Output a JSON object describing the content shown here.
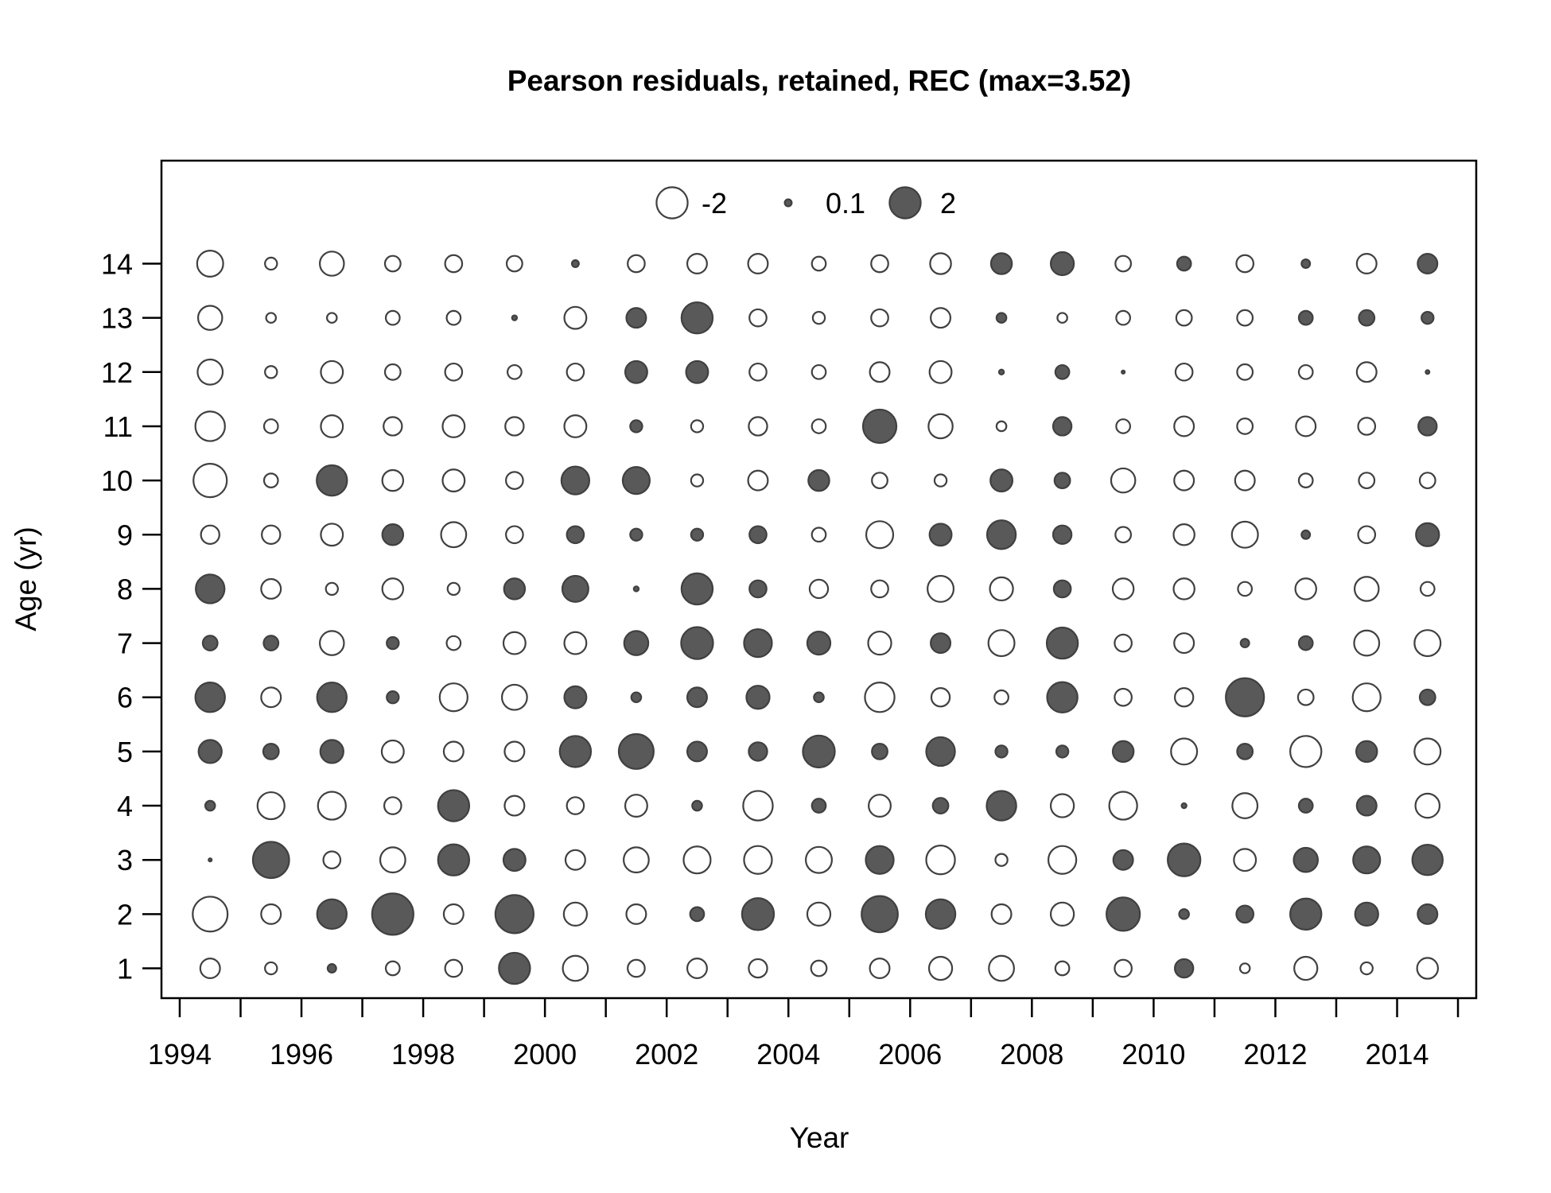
{
  "chart_data": {
    "type": "bubble",
    "title": "Pearson residuals, retained, REC (max=3.52)",
    "xlabel": "Year",
    "ylabel": "Age (yr)",
    "xlim": [
      1993.7,
      2015.3
    ],
    "ylim": [
      0.45,
      15.9
    ],
    "x_ticks": [
      "1994",
      "1996",
      "1998",
      "2000",
      "2002",
      "2004",
      "2006",
      "2008",
      "2010",
      "2012",
      "2014"
    ],
    "y_ticks": [
      "1",
      "2",
      "3",
      "4",
      "5",
      "6",
      "7",
      "8",
      "9",
      "10",
      "11",
      "12",
      "13",
      "14"
    ],
    "max_residual": 3.52,
    "colors": {
      "negative_fill": "#ffffff",
      "positive_fill": "#595959",
      "stroke": "#404040"
    },
    "legend": {
      "placement": "top-center",
      "entries": [
        {
          "label": "-2",
          "value": -2
        },
        {
          "label": "0.1",
          "value": 0.1
        },
        {
          "label": "2",
          "value": 2
        }
      ]
    },
    "years": [
      1994.5,
      1995.5,
      1996.5,
      1997.5,
      1998.5,
      1999.5,
      2000.5,
      2001.5,
      2002.5,
      2003.5,
      2004.5,
      2005.5,
      2006.5,
      2007.5,
      2008.5,
      2009.5,
      2010.5,
      2011.5,
      2012.5,
      2013.5,
      2014.5
    ],
    "ages": [
      1,
      2,
      3,
      4,
      5,
      6,
      7,
      8,
      9,
      10,
      11,
      12,
      13,
      14
    ],
    "residuals": [
      [
        -0.8,
        -2.5,
        0.02,
        0.2,
        1.1,
        1.8,
        0.45,
        1.7,
        -0.7,
        -2.3,
        -1.8,
        -1.3,
        -1.2,
        -1.4
      ],
      [
        -0.3,
        -0.8,
        2.7,
        -1.5,
        0.5,
        -0.8,
        0.45,
        -0.8,
        -0.7,
        -0.4,
        -0.4,
        -0.3,
        -0.2,
        -0.3
      ],
      [
        0.15,
        1.8,
        -0.6,
        -1.6,
        1.1,
        1.8,
        -1.2,
        -0.3,
        -1.0,
        1.9,
        -1.0,
        -1.0,
        -0.2,
        -1.2
      ],
      [
        -0.4,
        3.52,
        -1.3,
        -0.6,
        -1.0,
        0.3,
        0.3,
        -0.9,
        0.9,
        -0.9,
        -0.7,
        -0.5,
        -0.4,
        -0.5
      ],
      [
        -0.6,
        -0.8,
        2.0,
        2.0,
        -0.8,
        -1.6,
        -0.4,
        -0.3,
        -1.3,
        -1.0,
        -1.0,
        -0.6,
        -0.4,
        -0.6
      ],
      [
        2.0,
        3.0,
        1.0,
        -0.8,
        -0.8,
        -1.3,
        -1.0,
        0.9,
        -0.6,
        -0.6,
        -0.7,
        -0.4,
        0.05,
        -0.5
      ],
      [
        -1.3,
        -1.1,
        -0.8,
        -0.6,
        2.0,
        1.0,
        -1.0,
        1.4,
        0.6,
        1.6,
        -1.0,
        -0.6,
        -1.0,
        0.1
      ],
      [
        -0.6,
        -0.8,
        -1.3,
        -1.0,
        2.5,
        0.2,
        1.2,
        0.05,
        0.3,
        1.5,
        0.3,
        1.0,
        0.8,
        -0.6
      ],
      [
        -0.8,
        0.4,
        -1.5,
        0.2,
        0.8,
        0.8,
        2.1,
        2.0,
        0.3,
        -0.3,
        -0.3,
        1.0,
        2.0,
        -0.8
      ],
      [
        -0.7,
        2.1,
        -1.6,
        -1.8,
        0.7,
        1.1,
        1.6,
        0.6,
        0.6,
        -0.8,
        -0.7,
        -0.6,
        -0.6,
        -0.8
      ],
      [
        -0.5,
        -1.1,
        -1.4,
        0.4,
        2.1,
        0.2,
        1.1,
        -0.7,
        -0.4,
        0.9,
        -0.4,
        -0.4,
        -0.3,
        -0.4
      ],
      [
        -0.8,
        2.7,
        1.6,
        -1.0,
        0.5,
        -1.8,
        -1.1,
        -0.6,
        -1.5,
        -0.5,
        2.3,
        -0.8,
        -0.6,
        -0.6
      ],
      [
        -1.1,
        1.8,
        -1.7,
        0.5,
        1.7,
        -0.7,
        0.8,
        -1.4,
        1.0,
        -0.3,
        -1.2,
        -1.0,
        -0.8,
        -0.9
      ],
      [
        -1.3,
        -0.8,
        -0.3,
        1.8,
        0.3,
        -0.4,
        -1.4,
        -1.1,
        1.7,
        1.0,
        -0.2,
        0.05,
        0.2,
        0.9
      ],
      [
        -0.4,
        -1.1,
        -1.6,
        -1.1,
        0.3,
        1.9,
        2.0,
        0.6,
        0.7,
        0.5,
        0.7,
        0.4,
        -0.2,
        1.1
      ],
      [
        -0.6,
        2.3,
        0.8,
        -1.6,
        0.9,
        -0.6,
        -0.6,
        -0.9,
        -0.5,
        -1.2,
        -0.4,
        0.02,
        -0.4,
        -0.5
      ],
      [
        0.7,
        0.2,
        2.2,
        0.05,
        -1.4,
        -0.7,
        -0.8,
        -0.9,
        -0.9,
        -0.8,
        -0.8,
        -0.6,
        -0.5,
        0.4
      ],
      [
        -0.2,
        0.6,
        -1.0,
        -1.3,
        0.5,
        3.0,
        0.15,
        -0.4,
        -1.4,
        -0.8,
        -0.5,
        -0.5,
        -0.5,
        -0.6
      ],
      [
        -1.1,
        2.0,
        1.2,
        0.4,
        -2.0,
        -0.5,
        0.4,
        -0.9,
        0.15,
        -0.4,
        -0.8,
        -0.4,
        0.4,
        0.15
      ],
      [
        -0.3,
        1.1,
        1.5,
        0.8,
        0.9,
        -1.6,
        -1.3,
        -1.2,
        -0.6,
        -0.5,
        -0.6,
        -0.8,
        0.5,
        -0.8
      ],
      [
        -0.9,
        0.8,
        1.9,
        -1.2,
        -1.4,
        0.5,
        -1.4,
        -0.4,
        1.1,
        -0.5,
        0.7,
        0.03,
        0.3,
        0.8
      ]
    ]
  }
}
